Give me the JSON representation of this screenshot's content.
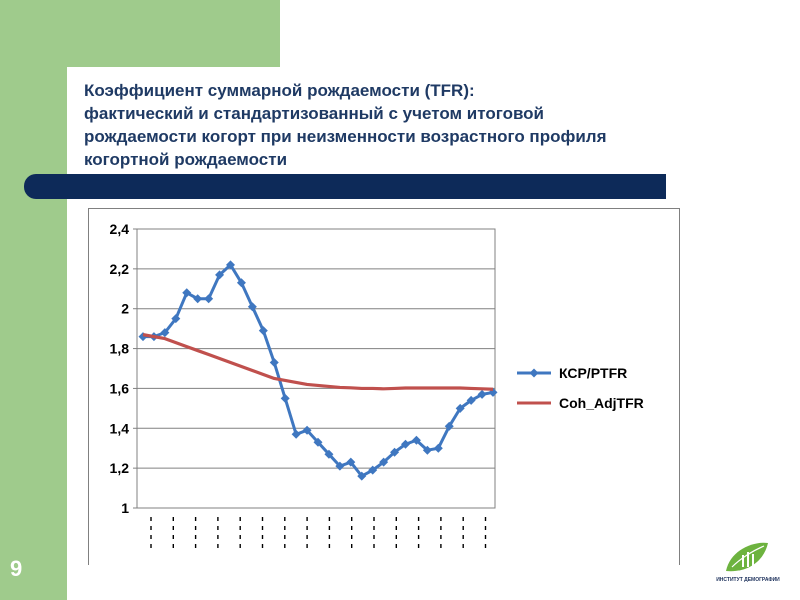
{
  "slide": {
    "number": "9",
    "title_lines": [
      "Коэффициент суммарной рождаемости (TFR):",
      "фактический и стандартизованный с учетом итоговой",
      "рождаемости когорт при неизменности возрастного профиля",
      "когортной рождаемости"
    ],
    "logo_text": "ИНСТИТУТ ДЕМОГРАФИИ",
    "colors": {
      "green": "#9fcb8c",
      "navy": "#0d2a59",
      "title": "#1f3a64"
    }
  },
  "chart_data": {
    "type": "line",
    "ylim": [
      1,
      2.4
    ],
    "yticks": [
      "2,4",
      "2,2",
      "2",
      "1,8",
      "1,6",
      "1,4",
      "1,2",
      "1"
    ],
    "yticks_values": [
      2.4,
      2.2,
      2.0,
      1.8,
      1.6,
      1.4,
      1.2,
      1.0
    ],
    "grid": true,
    "legend_position": "right",
    "series": [
      {
        "name": "КСР/PTFR",
        "color": "#3f77c0",
        "marker": "diamond",
        "values": [
          1.86,
          1.86,
          1.88,
          1.95,
          2.08,
          2.05,
          2.05,
          2.17,
          2.22,
          2.13,
          2.01,
          1.89,
          1.73,
          1.55,
          1.37,
          1.39,
          1.33,
          1.27,
          1.21,
          1.23,
          1.16,
          1.19,
          1.23,
          1.28,
          1.32,
          1.34,
          1.29,
          1.3,
          1.41,
          1.5,
          1.54,
          1.57,
          1.58
        ]
      },
      {
        "name": "Coh_AdjTFR",
        "color": "#c0504d",
        "values": [
          1.87,
          1.86,
          1.85,
          1.83,
          1.81,
          1.79,
          1.77,
          1.75,
          1.73,
          1.71,
          1.69,
          1.67,
          1.65,
          1.64,
          1.63,
          1.62,
          1.615,
          1.61,
          1.605,
          1.603,
          1.6,
          1.6,
          1.598,
          1.6,
          1.602,
          1.602,
          1.602,
          1.602,
          1.602,
          1.602,
          1.6,
          1.598,
          1.596
        ]
      }
    ]
  }
}
